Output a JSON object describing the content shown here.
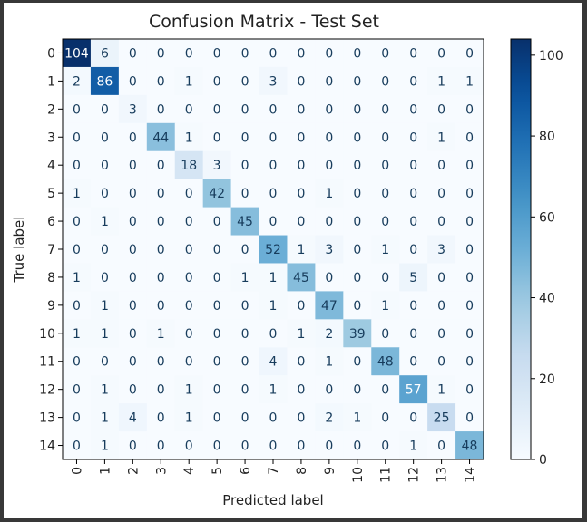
{
  "chart_data": {
    "type": "heatmap",
    "title": "Confusion Matrix - Test Set",
    "xlabel": "Predicted label",
    "ylabel": "True label",
    "labels": [
      "0",
      "1",
      "2",
      "3",
      "4",
      "5",
      "6",
      "7",
      "8",
      "9",
      "10",
      "11",
      "12",
      "13",
      "14"
    ],
    "matrix": [
      [
        104,
        6,
        0,
        0,
        0,
        0,
        0,
        0,
        0,
        0,
        0,
        0,
        0,
        0,
        0
      ],
      [
        2,
        86,
        0,
        0,
        1,
        0,
        0,
        3,
        0,
        0,
        0,
        0,
        0,
        1,
        1
      ],
      [
        0,
        0,
        3,
        0,
        0,
        0,
        0,
        0,
        0,
        0,
        0,
        0,
        0,
        0,
        0
      ],
      [
        0,
        0,
        0,
        44,
        1,
        0,
        0,
        0,
        0,
        0,
        0,
        0,
        0,
        1,
        0
      ],
      [
        0,
        0,
        0,
        0,
        18,
        3,
        0,
        0,
        0,
        0,
        0,
        0,
        0,
        0,
        0
      ],
      [
        1,
        0,
        0,
        0,
        0,
        42,
        0,
        0,
        0,
        1,
        0,
        0,
        0,
        0,
        0
      ],
      [
        0,
        1,
        0,
        0,
        0,
        0,
        45,
        0,
        0,
        0,
        0,
        0,
        0,
        0,
        0
      ],
      [
        0,
        0,
        0,
        0,
        0,
        0,
        0,
        52,
        1,
        3,
        0,
        1,
        0,
        3,
        0
      ],
      [
        1,
        0,
        0,
        0,
        0,
        0,
        1,
        1,
        45,
        0,
        0,
        0,
        5,
        0,
        0
      ],
      [
        0,
        1,
        0,
        0,
        0,
        0,
        0,
        1,
        0,
        47,
        0,
        1,
        0,
        0,
        0
      ],
      [
        1,
        1,
        0,
        1,
        0,
        0,
        0,
        0,
        1,
        2,
        39,
        0,
        0,
        0,
        0
      ],
      [
        0,
        0,
        0,
        0,
        0,
        0,
        0,
        4,
        0,
        1,
        0,
        48,
        0,
        0,
        0
      ],
      [
        0,
        1,
        0,
        0,
        1,
        0,
        0,
        1,
        0,
        0,
        0,
        0,
        57,
        1,
        0
      ],
      [
        0,
        1,
        4,
        0,
        1,
        0,
        0,
        0,
        0,
        2,
        1,
        0,
        0,
        25,
        0
      ],
      [
        0,
        1,
        0,
        0,
        0,
        0,
        0,
        0,
        0,
        0,
        0,
        0,
        1,
        0,
        48
      ]
    ],
    "colormap": "Blues",
    "vmin": 0,
    "vmax": 104,
    "colorbar_ticks": [
      "0",
      "20",
      "40",
      "60",
      "80",
      "100"
    ],
    "grid": false
  }
}
